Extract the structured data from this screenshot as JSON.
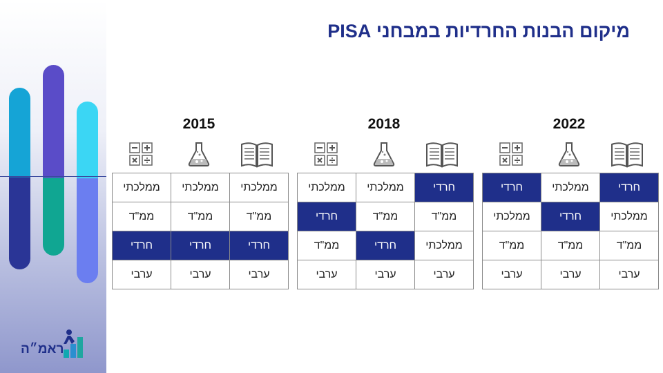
{
  "title": "מיקום הבנות החרדיות במבחני PISA",
  "logo_text": "ראמ״ה",
  "colors": {
    "accent": "#1f2f8a",
    "highlight": "#1f2f8a"
  },
  "subject_icons": [
    "book-icon",
    "flask-icon",
    "calculator-icon"
  ],
  "years": [
    {
      "year": "2015",
      "columns": [
        [
          "ממלכתי",
          "ממ\"ד",
          "חרדי",
          "ערבי"
        ],
        [
          "ממלכתי",
          "ממ\"ד",
          "חרדי",
          "ערבי"
        ],
        [
          "ממלכתי",
          "ממ\"ד",
          "חרדי",
          "ערבי"
        ]
      ]
    },
    {
      "year": "2018",
      "columns": [
        [
          "חרדי",
          "ממ\"ד",
          "ממלכתי",
          "ערבי"
        ],
        [
          "ממלכתי",
          "ממ\"ד",
          "חרדי",
          "ערבי"
        ],
        [
          "ממלכתי",
          "חרדי",
          "ממ\"ד",
          "ערבי"
        ]
      ]
    },
    {
      "year": "2022",
      "columns": [
        [
          "חרדי",
          "ממלכתי",
          "ממ\"ד",
          "ערבי"
        ],
        [
          "ממלכתי",
          "חרדי",
          "ממ\"ד",
          "ערבי"
        ],
        [
          "חרדי",
          "ממלכתי",
          "ממ\"ד",
          "ערבי"
        ]
      ]
    }
  ]
}
